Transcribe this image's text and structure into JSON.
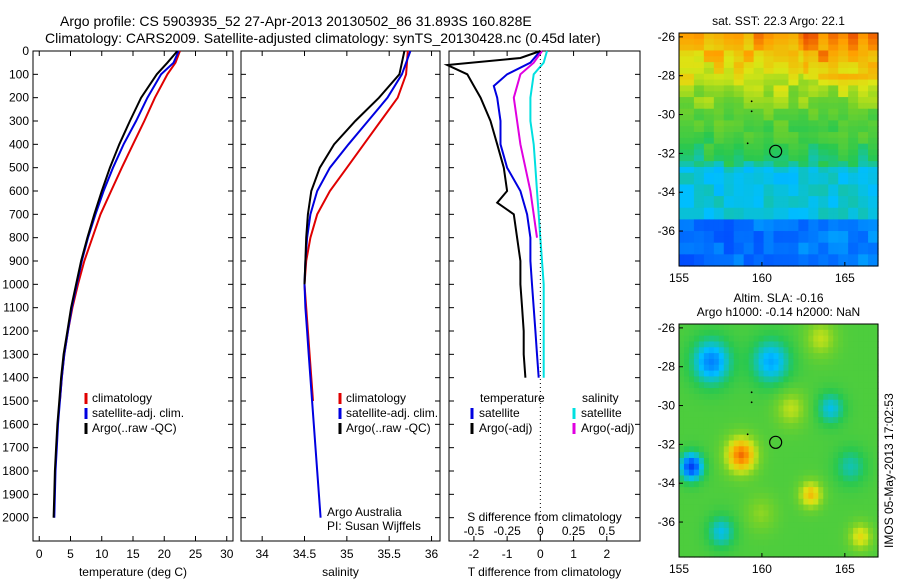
{
  "header": {
    "line1": "Argo profile: CS 5903935_52 27-Apr-2013 20130502_86 31.893S 160.828E",
    "line2": "Climatology: CARS2009. Satellite-adjusted climatology: synTS_20130428.nc (0.45d later)"
  },
  "colors": {
    "climatology": "#e00000",
    "satellite": "#0000e0",
    "argo": "#000000",
    "sat_salinity": "#00e0e0",
    "argo_adj_salinity": "#e000e0"
  },
  "chart_data": [
    {
      "type": "line",
      "xlabel": "temperature (deg C)",
      "ylabel": "",
      "xlim": [
        -1,
        31
      ],
      "ylim": [
        2100,
        0
      ],
      "xticks": [
        "0",
        "5",
        "10",
        "15",
        "20",
        "25",
        "30"
      ],
      "xtick_values": [
        0,
        5,
        10,
        15,
        20,
        25,
        30
      ],
      "yticks": [
        0,
        100,
        200,
        300,
        400,
        500,
        600,
        700,
        800,
        900,
        1000,
        1100,
        1200,
        1300,
        1400,
        1500,
        1600,
        1700,
        1800,
        1900,
        2000
      ],
      "legend": [
        "climatology",
        "satellite-adj. clim.",
        "Argo(..raw -QC)"
      ],
      "series": [
        {
          "name": "climatology",
          "color": "#e00000",
          "depth": [
            0,
            50,
            100,
            200,
            300,
            400,
            500,
            600,
            700,
            800,
            900,
            1000,
            1100,
            1200,
            1300,
            1400,
            1500
          ],
          "values": [
            22.5,
            21.8,
            20.5,
            18.5,
            16.8,
            15.0,
            13.2,
            11.5,
            9.8,
            8.5,
            7.2,
            6.2,
            5.3,
            4.6,
            4.0,
            3.6,
            3.3
          ]
        },
        {
          "name": "satellite-adj. clim.",
          "color": "#0000e0",
          "depth": [
            0,
            50,
            100,
            200,
            300,
            400,
            500,
            600,
            700,
            800,
            900,
            1000,
            1100,
            1200,
            1300,
            1400,
            1500,
            1600,
            1700,
            1800,
            1900,
            2000
          ],
          "values": [
            22.3,
            21.5,
            19.5,
            17.3,
            15.5,
            13.5,
            11.8,
            10.3,
            9.0,
            7.8,
            6.8,
            6.0,
            5.2,
            4.6,
            4.0,
            3.6,
            3.3,
            3.0,
            2.8,
            2.6,
            2.5,
            2.4
          ]
        },
        {
          "name": "Argo(..raw -QC)",
          "color": "#000000",
          "depth": [
            0,
            50,
            100,
            200,
            300,
            400,
            500,
            600,
            700,
            800,
            900,
            1000,
            1100,
            1200,
            1300,
            1400,
            1500,
            1600,
            1700,
            1800,
            1900,
            2000
          ],
          "values": [
            22.1,
            20.5,
            18.8,
            16.3,
            14.5,
            12.8,
            11.3,
            10.0,
            8.8,
            7.7,
            6.7,
            5.9,
            5.1,
            4.5,
            3.9,
            3.5,
            3.2,
            2.9,
            2.7,
            2.5,
            2.4,
            2.3
          ]
        }
      ]
    },
    {
      "type": "line",
      "xlabel": "salinity",
      "ylabel": "",
      "xlim": [
        33.75,
        36.1
      ],
      "ylim": [
        2100,
        0
      ],
      "xticks": [
        "34",
        "34.5",
        "35",
        "35.5",
        "36"
      ],
      "xtick_values": [
        34,
        34.5,
        35,
        35.5,
        36
      ],
      "legend": [
        "climatology",
        "satellite-adj. clim.",
        "Argo(..raw -QC)"
      ],
      "annotations": [
        "Argo Australia",
        "PI: Susan Wijffels"
      ],
      "series": [
        {
          "name": "climatology",
          "color": "#e00000",
          "depth": [
            0,
            100,
            200,
            300,
            400,
            500,
            600,
            700,
            800,
            900,
            1000,
            1100,
            1200,
            1300,
            1400,
            1500
          ],
          "values": [
            35.72,
            35.7,
            35.6,
            35.4,
            35.2,
            35.0,
            34.8,
            34.65,
            34.57,
            34.52,
            34.5,
            34.52,
            34.54,
            34.56,
            34.58,
            34.6
          ]
        },
        {
          "name": "satellite-adj. clim.",
          "color": "#0000e0",
          "depth": [
            0,
            100,
            200,
            300,
            400,
            500,
            600,
            700,
            800,
            900,
            1000,
            1100,
            1200,
            1300,
            1400,
            1500,
            1600,
            1700,
            1800,
            1900,
            2000
          ],
          "values": [
            35.75,
            35.65,
            35.48,
            35.25,
            35.02,
            34.8,
            34.65,
            34.57,
            34.53,
            34.51,
            34.5,
            34.51,
            34.53,
            34.55,
            34.57,
            34.59,
            34.61,
            34.63,
            34.65,
            34.67,
            34.69
          ]
        },
        {
          "name": "Argo(..raw -QC)",
          "color": "#000000",
          "depth": [
            0,
            100,
            200,
            300,
            400,
            500,
            600,
            700,
            800,
            900,
            1000
          ],
          "values": [
            35.68,
            35.62,
            35.38,
            35.1,
            34.85,
            34.68,
            34.58,
            34.54,
            34.52,
            34.51,
            34.5
          ]
        }
      ]
    },
    {
      "type": "line",
      "xlabel": "T difference from climatology",
      "xlabel_top": "S difference from climatology",
      "xlim": [
        -2.75,
        3.0
      ],
      "ylim": [
        2100,
        0
      ],
      "xticks": [
        "-2",
        "-1",
        "0",
        "1",
        "2"
      ],
      "xtick_values": [
        -2,
        -1,
        0,
        1,
        2
      ],
      "top_ticks": [
        "-0.5",
        "-0.25",
        "0",
        "0.25",
        "0.5"
      ],
      "top_tick_values": [
        -2,
        -1,
        0,
        1,
        2
      ],
      "legend_left_title": "temperature",
      "legend_right_title": "salinity",
      "legend": [
        "satellite",
        "Argo(-adj)",
        "satellite",
        "Argo(-adj)"
      ],
      "series": [
        {
          "name": "satellite",
          "color": "#0000e0",
          "depth": [
            0,
            50,
            100,
            150,
            200,
            300,
            400,
            500,
            600,
            700,
            800,
            900,
            1000,
            1100,
            1200,
            1300,
            1400
          ],
          "values": [
            0,
            -0.3,
            -1.0,
            -1.4,
            -1.3,
            -1.2,
            -1.2,
            -1.0,
            -0.6,
            -0.4,
            -0.3,
            -0.3,
            -0.25,
            -0.2,
            -0.15,
            -0.1,
            -0.05
          ]
        },
        {
          "name": "Argo(-adj)",
          "color": "#000000",
          "depth": [
            0,
            30,
            60,
            100,
            150,
            200,
            300,
            400,
            500,
            600,
            650,
            700,
            800,
            900,
            1000,
            1100,
            1200,
            1300,
            1400
          ],
          "values": [
            0,
            -0.6,
            -2.8,
            -2.2,
            -2.0,
            -1.8,
            -1.5,
            -1.3,
            -1.1,
            -1.0,
            -1.3,
            -0.8,
            -0.7,
            -0.6,
            -0.6,
            -0.55,
            -0.5,
            -0.5,
            -0.45
          ]
        },
        {
          "name": "satellite",
          "color": "#00e0e0",
          "depth": [
            0,
            50,
            100,
            200,
            300,
            400,
            500,
            600,
            700,
            800,
            900,
            1000,
            1100,
            1200,
            1300,
            1400
          ],
          "values": [
            0.2,
            0.1,
            -0.2,
            -0.3,
            -0.3,
            -0.2,
            -0.15,
            -0.1,
            -0.05,
            0,
            0.05,
            0.1,
            0.1,
            0.1,
            0.1,
            0.1
          ]
        },
        {
          "name": "Argo(-adj)",
          "color": "#e000e0",
          "depth": [
            0,
            50,
            100,
            200,
            300,
            400,
            500,
            600,
            700,
            800
          ],
          "values": [
            0.05,
            -0.2,
            -0.6,
            -0.8,
            -0.7,
            -0.6,
            -0.45,
            -0.3,
            -0.2,
            -0.1
          ]
        }
      ]
    },
    {
      "type": "heatmap",
      "title": "sat. SST: 22.3 Argo: 22.1",
      "xlim": [
        155,
        167
      ],
      "ylim": [
        -37.8,
        -25.8
      ],
      "xticks": [
        "155",
        "160",
        "165"
      ],
      "xtick_values": [
        155,
        160,
        165
      ],
      "yticks": [
        "-26",
        "-28",
        "-30",
        "-32",
        "-34",
        "-36"
      ],
      "ytick_values": [
        -26,
        -28,
        -30,
        -32,
        -34,
        -36
      ],
      "marker": {
        "lon": 160.828,
        "lat": -31.893
      }
    },
    {
      "type": "heatmap",
      "title_line1": "Altim. SLA: -0.16",
      "title_line2": "Argo h1000: -0.14 h2000: NaN",
      "xlim": [
        155,
        167
      ],
      "ylim": [
        -37.8,
        -25.8
      ],
      "xticks": [
        "155",
        "160",
        "165"
      ],
      "xtick_values": [
        155,
        160,
        165
      ],
      "yticks": [
        "-26",
        "-28",
        "-30",
        "-32",
        "-34",
        "-36"
      ],
      "ytick_values": [
        -26,
        -28,
        -30,
        -32,
        -34,
        -36
      ],
      "marker": {
        "lon": 160.828,
        "lat": -31.893
      }
    }
  ],
  "side_stamp": "IMOS 05-May-2013 17:02:53"
}
